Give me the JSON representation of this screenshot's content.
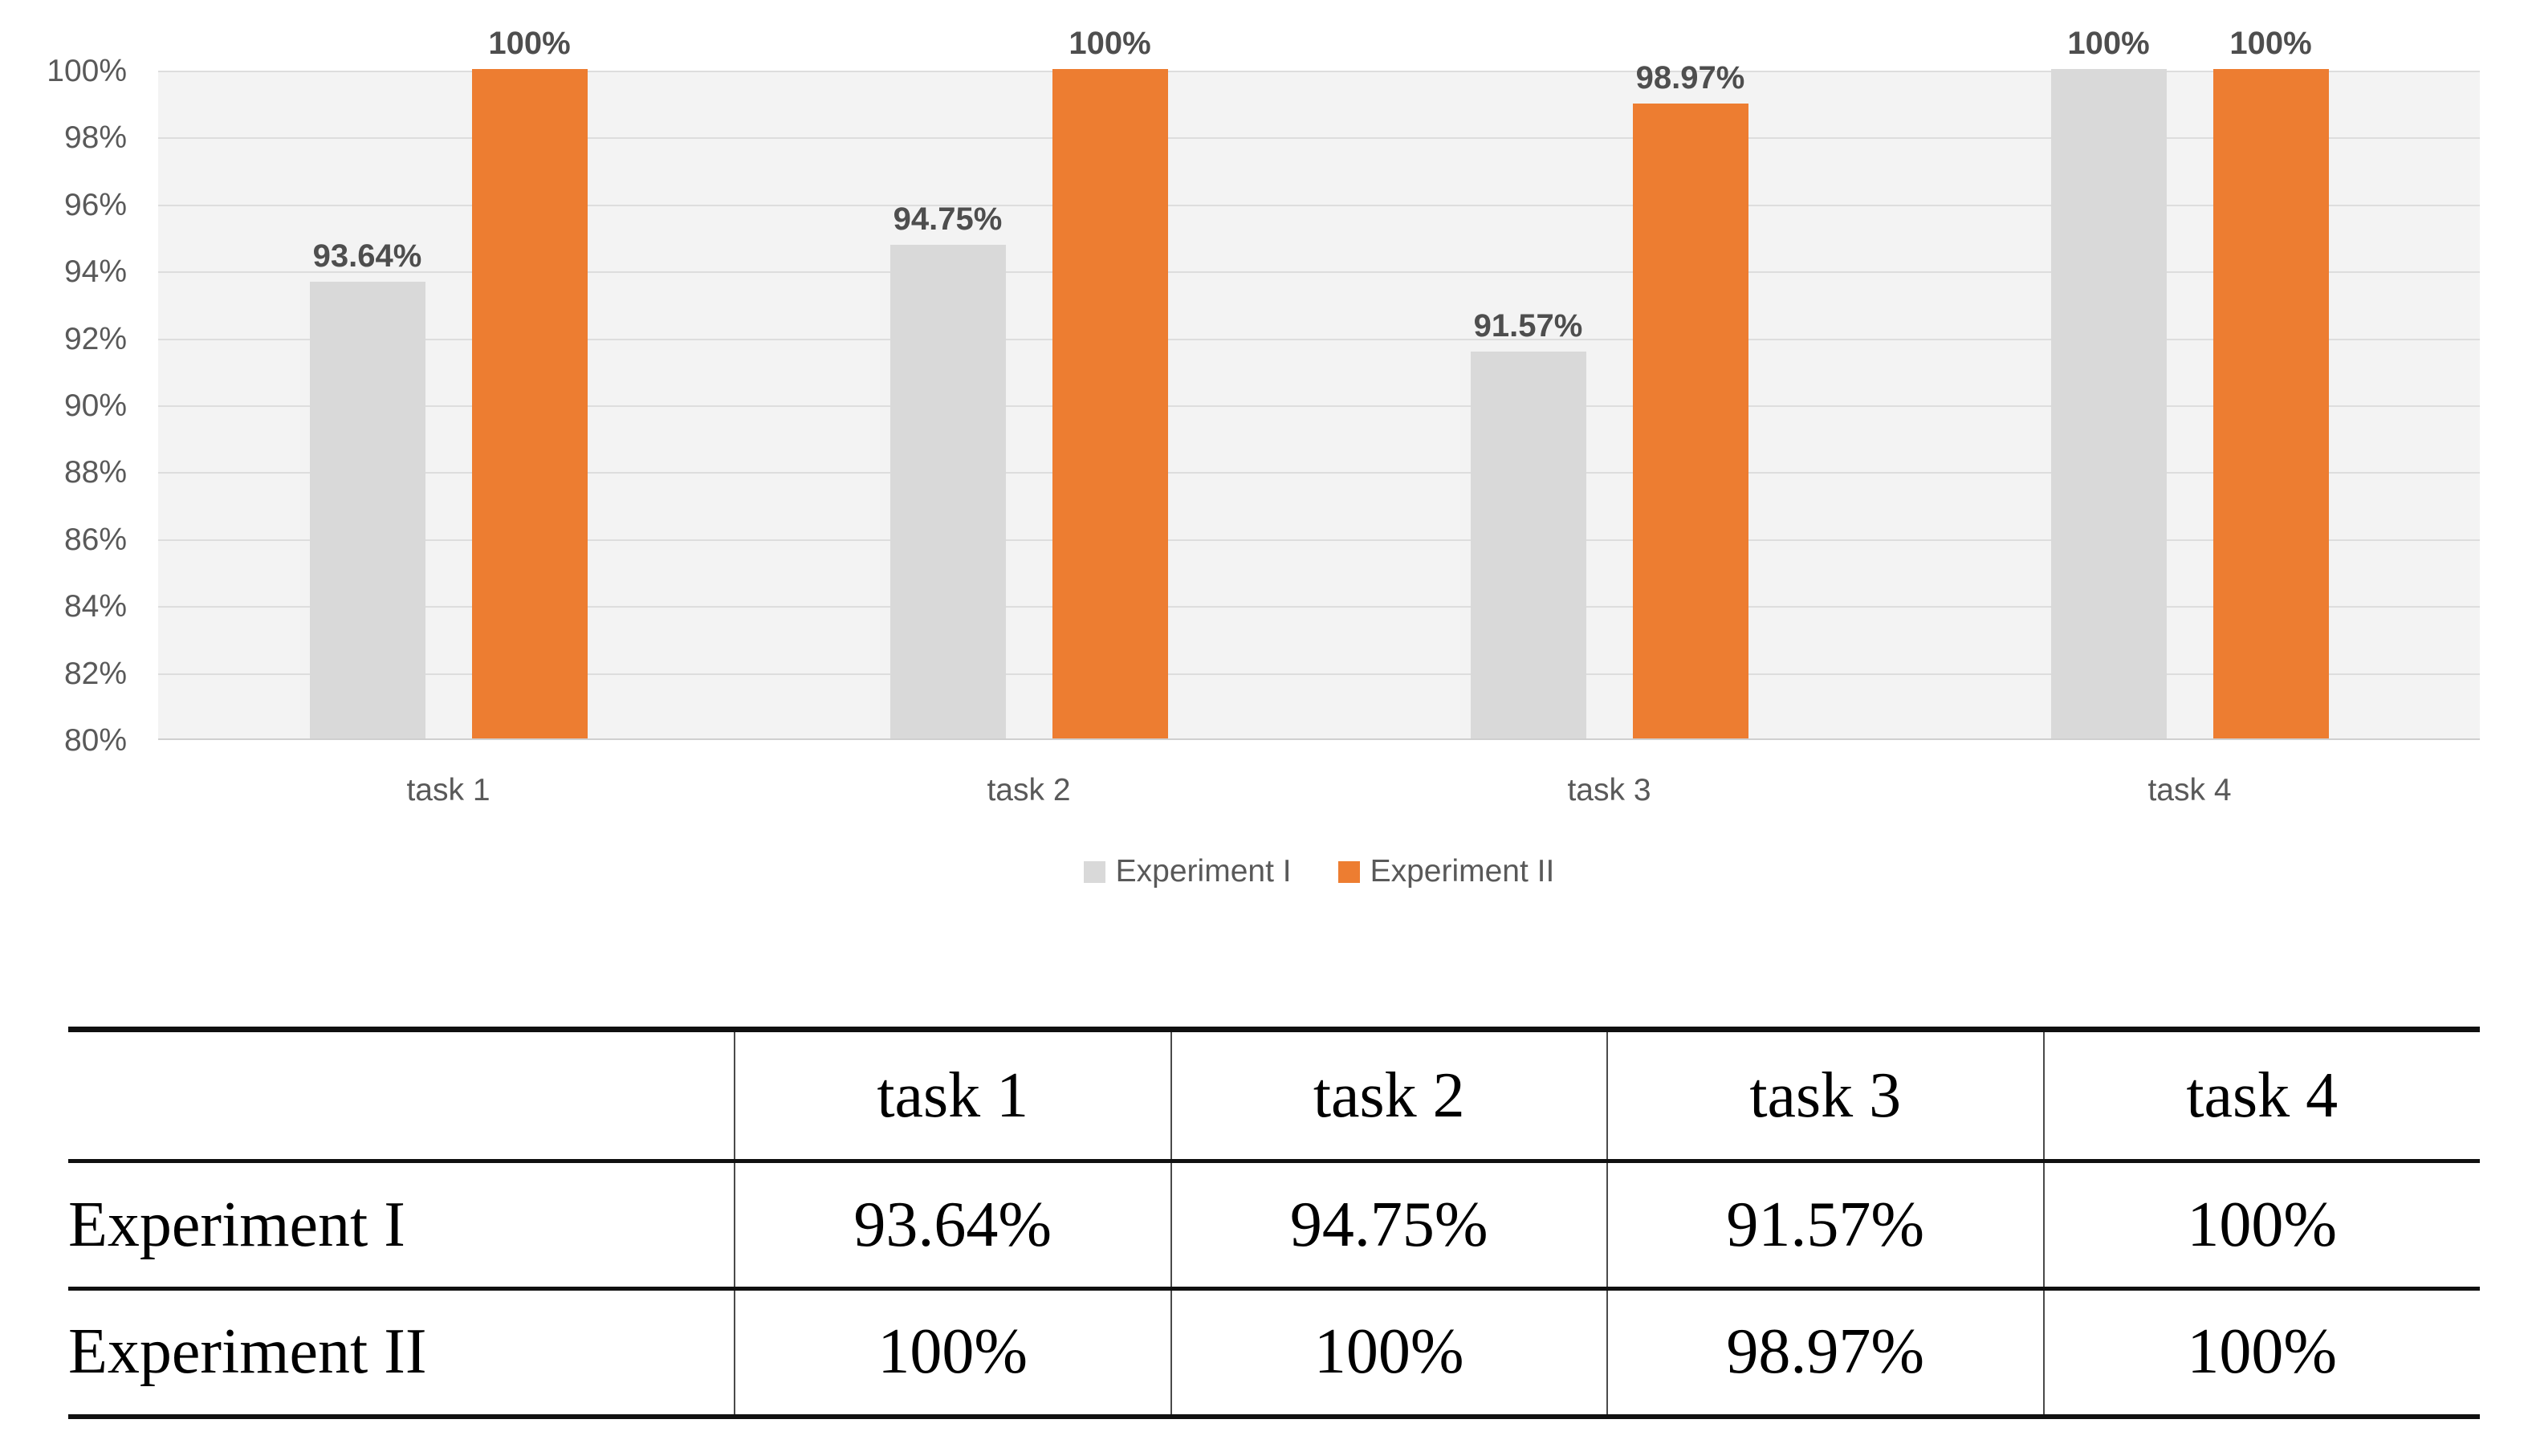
{
  "chart_data": {
    "type": "bar",
    "title": "",
    "xlabel": "",
    "ylabel": "",
    "categories": [
      "task 1",
      "task 2",
      "task 3",
      "task 4"
    ],
    "series": [
      {
        "name": "Experiment I",
        "color": "#D9D9D9",
        "values": [
          93.64,
          94.75,
          91.57,
          100
        ],
        "labels": [
          "93.64%",
          "94.75%",
          "91.57%",
          "100%"
        ]
      },
      {
        "name": "Experiment II",
        "color": "#ED7D31",
        "values": [
          100,
          100,
          98.97,
          100
        ],
        "labels": [
          "100%",
          "100%",
          "98.97%",
          "100%"
        ]
      }
    ],
    "ylim": [
      80,
      100
    ],
    "ytick_values": [
      100,
      98,
      96,
      94,
      92,
      90,
      88,
      86,
      84,
      82,
      80
    ],
    "ytick_labels": [
      "100%",
      "98%",
      "96%",
      "94%",
      "92%",
      "90%",
      "88%",
      "86%",
      "84%",
      "82%",
      "80%"
    ],
    "grid": true,
    "legend_position": "bottom-center",
    "plot_background": "#F3F3F3",
    "gridline_color": "#DDDDDD",
    "axis_text_color": "#595959",
    "bar_label_color": "#4E4E4E"
  },
  "table": {
    "columns": [
      "",
      "task 1",
      "task 2",
      "task 3",
      "task 4"
    ],
    "rows": [
      {
        "label": "Experiment I",
        "values": [
          "93.64%",
          "94.75%",
          "91.57%",
          "100%"
        ]
      },
      {
        "label": "Experiment II",
        "values": [
          "100%",
          "100%",
          "98.97%",
          "100%"
        ]
      }
    ]
  }
}
